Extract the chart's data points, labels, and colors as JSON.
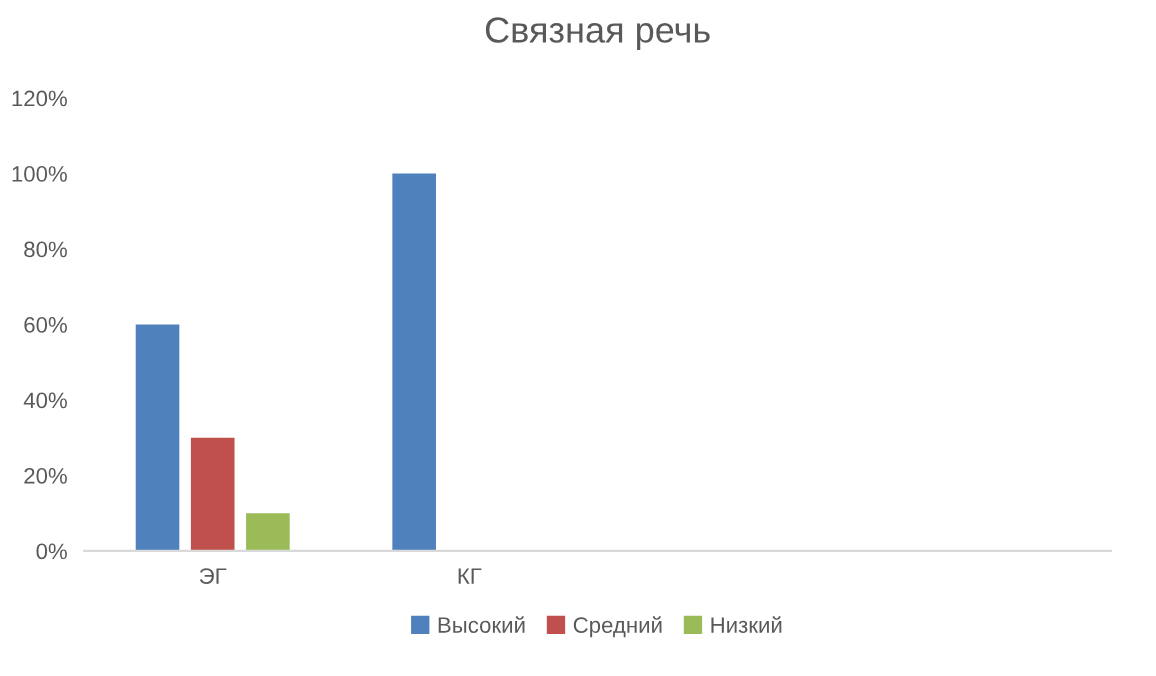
{
  "chart_data": {
    "type": "bar",
    "title": "Связная речь",
    "categories": [
      "ЭГ",
      "КГ",
      null,
      null
    ],
    "series": [
      {
        "name": "Высокий",
        "color": "#4f81bd",
        "values": [
          60,
          100,
          null,
          null
        ]
      },
      {
        "name": "Средний",
        "color": "#c0504d",
        "values": [
          30,
          0,
          null,
          null
        ]
      },
      {
        "name": "Низкий",
        "color": "#9bbb59",
        "values": [
          10,
          0,
          null,
          null
        ]
      }
    ],
    "ylim": [
      0,
      120
    ],
    "yticks": [
      {
        "value": 0,
        "label": "0%"
      },
      {
        "value": 20,
        "label": "20%"
      },
      {
        "value": 40,
        "label": "40%"
      },
      {
        "value": 60,
        "label": "60%"
      },
      {
        "value": 80,
        "label": "80%"
      },
      {
        "value": 100,
        "label": "100%"
      },
      {
        "value": 120,
        "label": "120%"
      }
    ],
    "grid": false,
    "legend": "bottom"
  }
}
